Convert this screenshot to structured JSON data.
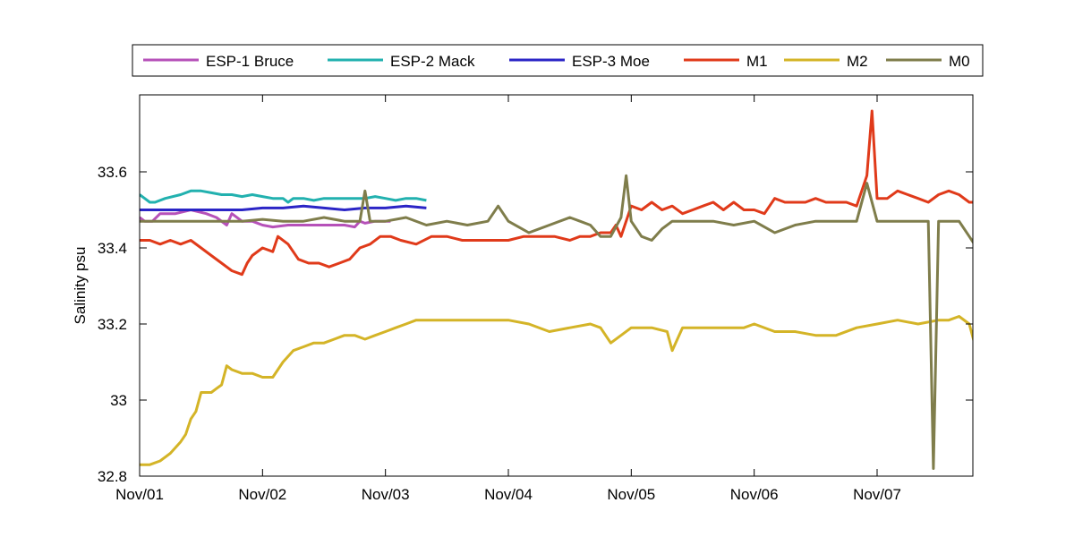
{
  "chart_data": {
    "type": "line",
    "title": "",
    "xlabel": "",
    "ylabel": "Salinity psu",
    "x_ticks": [
      "Nov/01",
      "Nov/02",
      "Nov/03",
      "Nov/04",
      "Nov/05",
      "Nov/06",
      "Nov/07"
    ],
    "xlim": [
      "Nov/01 00:00",
      "Nov/07 19:00"
    ],
    "y_ticks": [
      "32.8",
      "33",
      "33.2",
      "33.4",
      "33.6"
    ],
    "ylim": [
      32.8,
      33.78
    ],
    "grid": false,
    "legend_position": "top",
    "series": [
      {
        "name": "ESP-1 Bruce",
        "color": "#b651b9",
        "x": [
          "Nov/01 00:00",
          "Nov/01 01:00",
          "Nov/01 02:30",
          "Nov/01 04:00",
          "Nov/01 07:00",
          "Nov/01 10:00",
          "Nov/01 13:00",
          "Nov/01 15:00",
          "Nov/01 17:00",
          "Nov/01 18:00",
          "Nov/01 20:00",
          "Nov/01 22:00",
          "Nov/02 00:00",
          "Nov/02 02:00",
          "Nov/02 05:00",
          "Nov/02 08:00",
          "Nov/02 10:00",
          "Nov/02 12:00",
          "Nov/02 14:00",
          "Nov/02 16:00",
          "Nov/02 18:00",
          "Nov/02 19:00",
          "Nov/02 20:00",
          "Nov/02 22:00",
          "Nov/03 00:00",
          "Nov/03 01:00"
        ],
        "y": [
          33.48,
          33.47,
          33.47,
          33.49,
          33.49,
          33.5,
          33.49,
          33.48,
          33.46,
          33.49,
          33.47,
          33.47,
          33.46,
          33.455,
          33.46,
          33.46,
          33.46,
          33.46,
          33.46,
          33.46,
          33.455,
          33.47,
          33.465,
          33.47,
          33.47,
          33.47
        ]
      },
      {
        "name": "ESP-2 Mack",
        "color": "#22b1af",
        "x": [
          "Nov/01 00:00",
          "Nov/01 01:00",
          "Nov/01 02:00",
          "Nov/01 03:00",
          "Nov/01 05:00",
          "Nov/01 08:00",
          "Nov/01 10:00",
          "Nov/01 12:00",
          "Nov/01 14:00",
          "Nov/01 16:00",
          "Nov/01 18:00",
          "Nov/01 20:00",
          "Nov/01 22:00",
          "Nov/02 00:00",
          "Nov/02 02:00",
          "Nov/02 04:00",
          "Nov/02 05:00",
          "Nov/02 06:00",
          "Nov/02 08:00",
          "Nov/02 10:00",
          "Nov/02 12:00",
          "Nov/02 14:00",
          "Nov/02 16:00",
          "Nov/02 18:00",
          "Nov/02 20:00",
          "Nov/02 22:00",
          "Nov/03 00:00",
          "Nov/03 02:00",
          "Nov/03 04:00",
          "Nov/03 06:00",
          "Nov/03 08:00"
        ],
        "y": [
          33.54,
          33.53,
          33.52,
          33.52,
          33.53,
          33.54,
          33.55,
          33.55,
          33.545,
          33.54,
          33.54,
          33.535,
          33.54,
          33.535,
          33.53,
          33.53,
          33.52,
          33.53,
          33.53,
          33.525,
          33.53,
          33.53,
          33.53,
          33.53,
          33.53,
          33.535,
          33.53,
          33.525,
          33.53,
          33.53,
          33.525
        ]
      },
      {
        "name": "ESP-3 Moe",
        "color": "#2b25c6",
        "x": [
          "Nov/01 00:00",
          "Nov/01 04:00",
          "Nov/01 08:00",
          "Nov/01 12:00",
          "Nov/01 16:00",
          "Nov/01 20:00",
          "Nov/02 00:00",
          "Nov/02 04:00",
          "Nov/02 08:00",
          "Nov/02 12:00",
          "Nov/02 16:00",
          "Nov/02 20:00",
          "Nov/03 00:00",
          "Nov/03 04:00",
          "Nov/03 08:00"
        ],
        "y": [
          33.5,
          33.5,
          33.5,
          33.5,
          33.5,
          33.5,
          33.505,
          33.505,
          33.51,
          33.505,
          33.5,
          33.505,
          33.505,
          33.51,
          33.505
        ]
      },
      {
        "name": "M1",
        "color": "#e03a1a",
        "x": [
          "Nov/01 00:00",
          "Nov/01 02:00",
          "Nov/01 04:00",
          "Nov/01 06:00",
          "Nov/01 08:00",
          "Nov/01 10:00",
          "Nov/01 12:00",
          "Nov/01 14:00",
          "Nov/01 16:00",
          "Nov/01 18:00",
          "Nov/01 20:00",
          "Nov/01 21:00",
          "Nov/01 22:00",
          "Nov/02 00:00",
          "Nov/02 02:00",
          "Nov/02 03:00",
          "Nov/02 05:00",
          "Nov/02 07:00",
          "Nov/02 09:00",
          "Nov/02 11:00",
          "Nov/02 13:00",
          "Nov/02 15:00",
          "Nov/02 17:00",
          "Nov/02 19:00",
          "Nov/02 21:00",
          "Nov/02 23:00",
          "Nov/03 01:00",
          "Nov/03 03:00",
          "Nov/03 06:00",
          "Nov/03 09:00",
          "Nov/03 12:00",
          "Nov/03 15:00",
          "Nov/03 18:00",
          "Nov/03 21:00",
          "Nov/04 00:00",
          "Nov/04 03:00",
          "Nov/04 06:00",
          "Nov/04 09:00",
          "Nov/04 12:00",
          "Nov/04 14:00",
          "Nov/04 16:00",
          "Nov/04 18:00",
          "Nov/04 20:00",
          "Nov/04 21:00",
          "Nov/04 22:00",
          "Nov/05 00:00",
          "Nov/05 02:00",
          "Nov/05 04:00",
          "Nov/05 06:00",
          "Nov/05 08:00",
          "Nov/05 10:00",
          "Nov/05 12:00",
          "Nov/05 14:00",
          "Nov/05 16:00",
          "Nov/05 18:00",
          "Nov/05 20:00",
          "Nov/05 22:00",
          "Nov/06 00:00",
          "Nov/06 02:00",
          "Nov/06 04:00",
          "Nov/06 06:00",
          "Nov/06 08:00",
          "Nov/06 10:00",
          "Nov/06 12:00",
          "Nov/06 14:00",
          "Nov/06 16:00",
          "Nov/06 18:00",
          "Nov/06 20:00",
          "Nov/06 22:00",
          "Nov/06 23:00",
          "Nov/07 00:00",
          "Nov/07 02:00",
          "Nov/07 04:00",
          "Nov/07 06:00",
          "Nov/07 08:00",
          "Nov/07 10:00",
          "Nov/07 12:00",
          "Nov/07 14:00",
          "Nov/07 16:00",
          "Nov/07 18:00",
          "Nov/07 19:00"
        ],
        "y": [
          33.42,
          33.42,
          33.41,
          33.42,
          33.41,
          33.42,
          33.4,
          33.38,
          33.36,
          33.34,
          33.33,
          33.36,
          33.38,
          33.4,
          33.39,
          33.43,
          33.41,
          33.37,
          33.36,
          33.36,
          33.35,
          33.36,
          33.37,
          33.4,
          33.41,
          33.43,
          33.43,
          33.42,
          33.41,
          33.43,
          33.43,
          33.42,
          33.42,
          33.42,
          33.42,
          33.43,
          33.43,
          33.43,
          33.42,
          33.43,
          33.43,
          33.44,
          33.44,
          33.46,
          33.43,
          33.51,
          33.5,
          33.52,
          33.5,
          33.51,
          33.49,
          33.5,
          33.51,
          33.52,
          33.5,
          33.52,
          33.5,
          33.5,
          33.49,
          33.53,
          33.52,
          33.52,
          33.52,
          33.53,
          33.52,
          33.52,
          33.52,
          33.51,
          33.59,
          33.76,
          33.53,
          33.53,
          33.55,
          33.54,
          33.53,
          33.52,
          33.54,
          33.55,
          33.54,
          33.52,
          33.52
        ]
      },
      {
        "name": "M2",
        "color": "#d4b427",
        "x": [
          "Nov/01 00:00",
          "Nov/01 02:00",
          "Nov/01 04:00",
          "Nov/01 06:00",
          "Nov/01 08:00",
          "Nov/01 09:00",
          "Nov/01 10:00",
          "Nov/01 11:00",
          "Nov/01 12:00",
          "Nov/01 14:00",
          "Nov/01 15:00",
          "Nov/01 16:00",
          "Nov/01 17:00",
          "Nov/01 18:00",
          "Nov/01 20:00",
          "Nov/01 22:00",
          "Nov/02 00:00",
          "Nov/02 02:00",
          "Nov/02 04:00",
          "Nov/02 06:00",
          "Nov/02 08:00",
          "Nov/02 10:00",
          "Nov/02 12:00",
          "Nov/02 14:00",
          "Nov/02 16:00",
          "Nov/02 18:00",
          "Nov/02 20:00",
          "Nov/02 22:00",
          "Nov/03 00:00",
          "Nov/03 02:00",
          "Nov/03 04:00",
          "Nov/03 06:00",
          "Nov/03 09:00",
          "Nov/03 12:00",
          "Nov/03 16:00",
          "Nov/03 20:00",
          "Nov/04 00:00",
          "Nov/04 04:00",
          "Nov/04 08:00",
          "Nov/04 12:00",
          "Nov/04 16:00",
          "Nov/04 18:00",
          "Nov/04 20:00",
          "Nov/04 22:00",
          "Nov/05 00:00",
          "Nov/05 04:00",
          "Nov/05 07:00",
          "Nov/05 08:00",
          "Nov/05 10:00",
          "Nov/05 14:00",
          "Nov/05 18:00",
          "Nov/05 22:00",
          "Nov/06 00:00",
          "Nov/06 04:00",
          "Nov/06 08:00",
          "Nov/06 12:00",
          "Nov/06 16:00",
          "Nov/06 20:00",
          "Nov/07 00:00",
          "Nov/07 04:00",
          "Nov/07 08:00",
          "Nov/07 12:00",
          "Nov/07 14:00",
          "Nov/07 16:00",
          "Nov/07 18:00",
          "Nov/07 19:00"
        ],
        "y": [
          32.83,
          32.83,
          32.84,
          32.86,
          32.89,
          32.91,
          32.95,
          32.97,
          33.02,
          33.02,
          33.03,
          33.04,
          33.09,
          33.08,
          33.07,
          33.07,
          33.06,
          33.06,
          33.1,
          33.13,
          33.14,
          33.15,
          33.15,
          33.16,
          33.17,
          33.17,
          33.16,
          33.17,
          33.18,
          33.19,
          33.2,
          33.21,
          33.21,
          33.21,
          33.21,
          33.21,
          33.21,
          33.2,
          33.18,
          33.19,
          33.2,
          33.19,
          33.15,
          33.17,
          33.19,
          33.19,
          33.18,
          33.13,
          33.19,
          33.19,
          33.19,
          33.19,
          33.2,
          33.18,
          33.18,
          33.17,
          33.17,
          33.19,
          33.2,
          33.21,
          33.2,
          33.21,
          33.21,
          33.22,
          33.2,
          33.15
        ]
      },
      {
        "name": "M0",
        "color": "#7f7d4b",
        "x": [
          "Nov/01 00:00",
          "Nov/01 04:00",
          "Nov/01 08:00",
          "Nov/01 12:00",
          "Nov/01 16:00",
          "Nov/01 20:00",
          "Nov/02 00:00",
          "Nov/02 04:00",
          "Nov/02 08:00",
          "Nov/02 12:00",
          "Nov/02 16:00",
          "Nov/02 19:00",
          "Nov/02 20:00",
          "Nov/02 21:00",
          "Nov/03 00:00",
          "Nov/03 04:00",
          "Nov/03 08:00",
          "Nov/03 12:00",
          "Nov/03 16:00",
          "Nov/03 20:00",
          "Nov/03 22:00",
          "Nov/04 00:00",
          "Nov/04 04:00",
          "Nov/04 08:00",
          "Nov/04 12:00",
          "Nov/04 14:00",
          "Nov/04 16:00",
          "Nov/04 18:00",
          "Nov/04 20:00",
          "Nov/04 22:00",
          "Nov/04 23:00",
          "Nov/05 00:00",
          "Nov/05 02:00",
          "Nov/05 04:00",
          "Nov/05 06:00",
          "Nov/05 08:00",
          "Nov/05 12:00",
          "Nov/05 16:00",
          "Nov/05 20:00",
          "Nov/06 00:00",
          "Nov/06 04:00",
          "Nov/06 08:00",
          "Nov/06 12:00",
          "Nov/06 16:00",
          "Nov/06 20:00",
          "Nov/06 22:00",
          "Nov/07 00:00",
          "Nov/07 04:00",
          "Nov/07 08:00",
          "Nov/07 10:00",
          "Nov/07 11:00",
          "Nov/07 12:00",
          "Nov/07 14:00",
          "Nov/07 16:00",
          "Nov/07 18:00",
          "Nov/07 19:00"
        ],
        "y": [
          33.47,
          33.47,
          33.47,
          33.47,
          33.47,
          33.47,
          33.475,
          33.47,
          33.47,
          33.48,
          33.47,
          33.47,
          33.55,
          33.47,
          33.47,
          33.48,
          33.46,
          33.47,
          33.46,
          33.47,
          33.51,
          33.47,
          33.44,
          33.46,
          33.48,
          33.47,
          33.46,
          33.43,
          33.43,
          33.48,
          33.59,
          33.47,
          33.43,
          33.42,
          33.45,
          33.47,
          33.47,
          33.47,
          33.46,
          33.47,
          33.44,
          33.46,
          33.47,
          33.47,
          33.47,
          33.57,
          33.47,
          33.47,
          33.47,
          33.47,
          32.82,
          33.47,
          33.47,
          33.47,
          33.43,
          33.41
        ]
      }
    ]
  }
}
